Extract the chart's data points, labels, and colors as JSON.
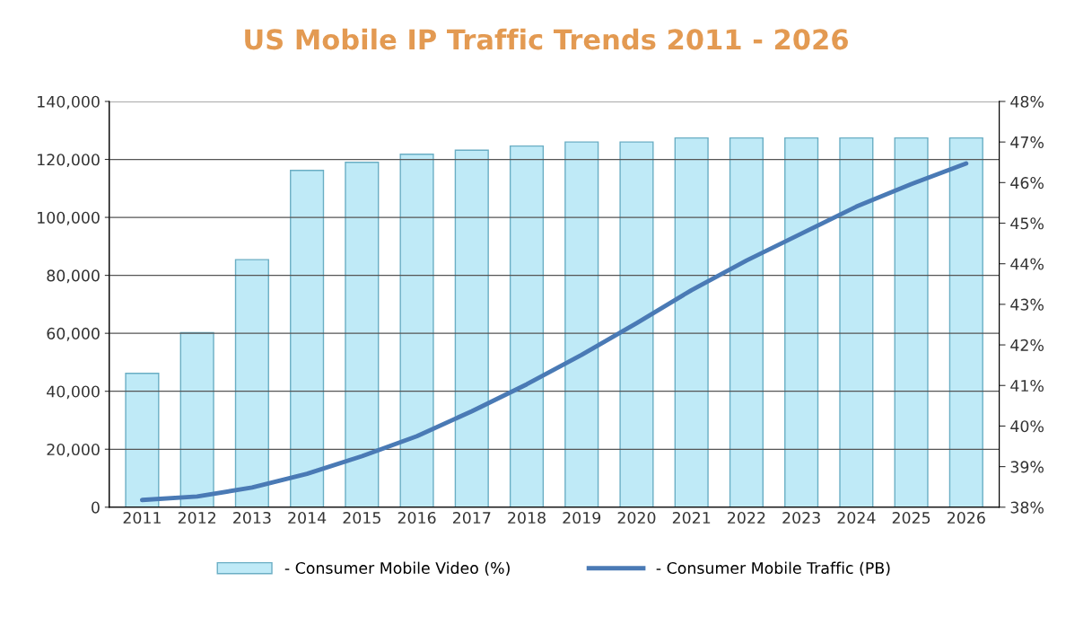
{
  "chart_data": {
    "type": "bar",
    "title": "US Mobile IP Traffic Trends 2011 - 2026",
    "categories": [
      "2011",
      "2012",
      "2013",
      "2014",
      "2015",
      "2016",
      "2017",
      "2018",
      "2019",
      "2020",
      "2021",
      "2022",
      "2023",
      "2024",
      "2025",
      "2026"
    ],
    "series": [
      {
        "name": "- Consumer Mobile Video (%)",
        "axis": "y2",
        "color": "#bfeaf7",
        "values": [
          41.3,
          42.3,
          44.1,
          46.3,
          46.5,
          46.7,
          46.8,
          46.9,
          47.0,
          47.0,
          47.1,
          47.1,
          47.1,
          47.1,
          47.1,
          47.1
        ]
      },
      {
        "name": "- Consumer Mobile Traffic (PB)",
        "type": "line",
        "color": "#4a7ab5",
        "values": [
          2500,
          3700,
          6800,
          11500,
          17600,
          24500,
          33100,
          42400,
          52600,
          63500,
          74900,
          85100,
          94400,
          103700,
          111500,
          118600
        ]
      }
    ],
    "ylim": [
      0,
      140000
    ],
    "yticks": [
      0,
      {
        "value": 20000,
        "label": "20,000"
      },
      {
        "value": 40000,
        "label": "40,000"
      },
      {
        "value": 60000,
        "label": "60,000"
      },
      {
        "value": 80000,
        "label": "80,000"
      },
      {
        "value": 100000,
        "label": "100,000"
      },
      {
        "value": 120000,
        "label": "120,000"
      },
      {
        "value": 140000,
        "label": "140,000"
      }
    ],
    "y2lim": [
      38,
      48
    ],
    "y2ticks": [
      {
        "value": 38,
        "label": "38%"
      },
      {
        "value": 39,
        "label": "39%"
      },
      {
        "value": 40,
        "label": "40%"
      },
      {
        "value": 41,
        "label": "41%"
      },
      {
        "value": 42,
        "label": "42%"
      },
      {
        "value": 43,
        "label": "43%"
      },
      {
        "value": 44,
        "label": "44%"
      },
      {
        "value": 45,
        "label": "45%"
      },
      {
        "value": 46,
        "label": "46%"
      },
      {
        "value": 47,
        "label": "47%"
      },
      {
        "value": 48,
        "label": "48%"
      }
    ],
    "grid": "y",
    "legend": "bottom",
    "marker": "none",
    "line_style": "solid"
  }
}
